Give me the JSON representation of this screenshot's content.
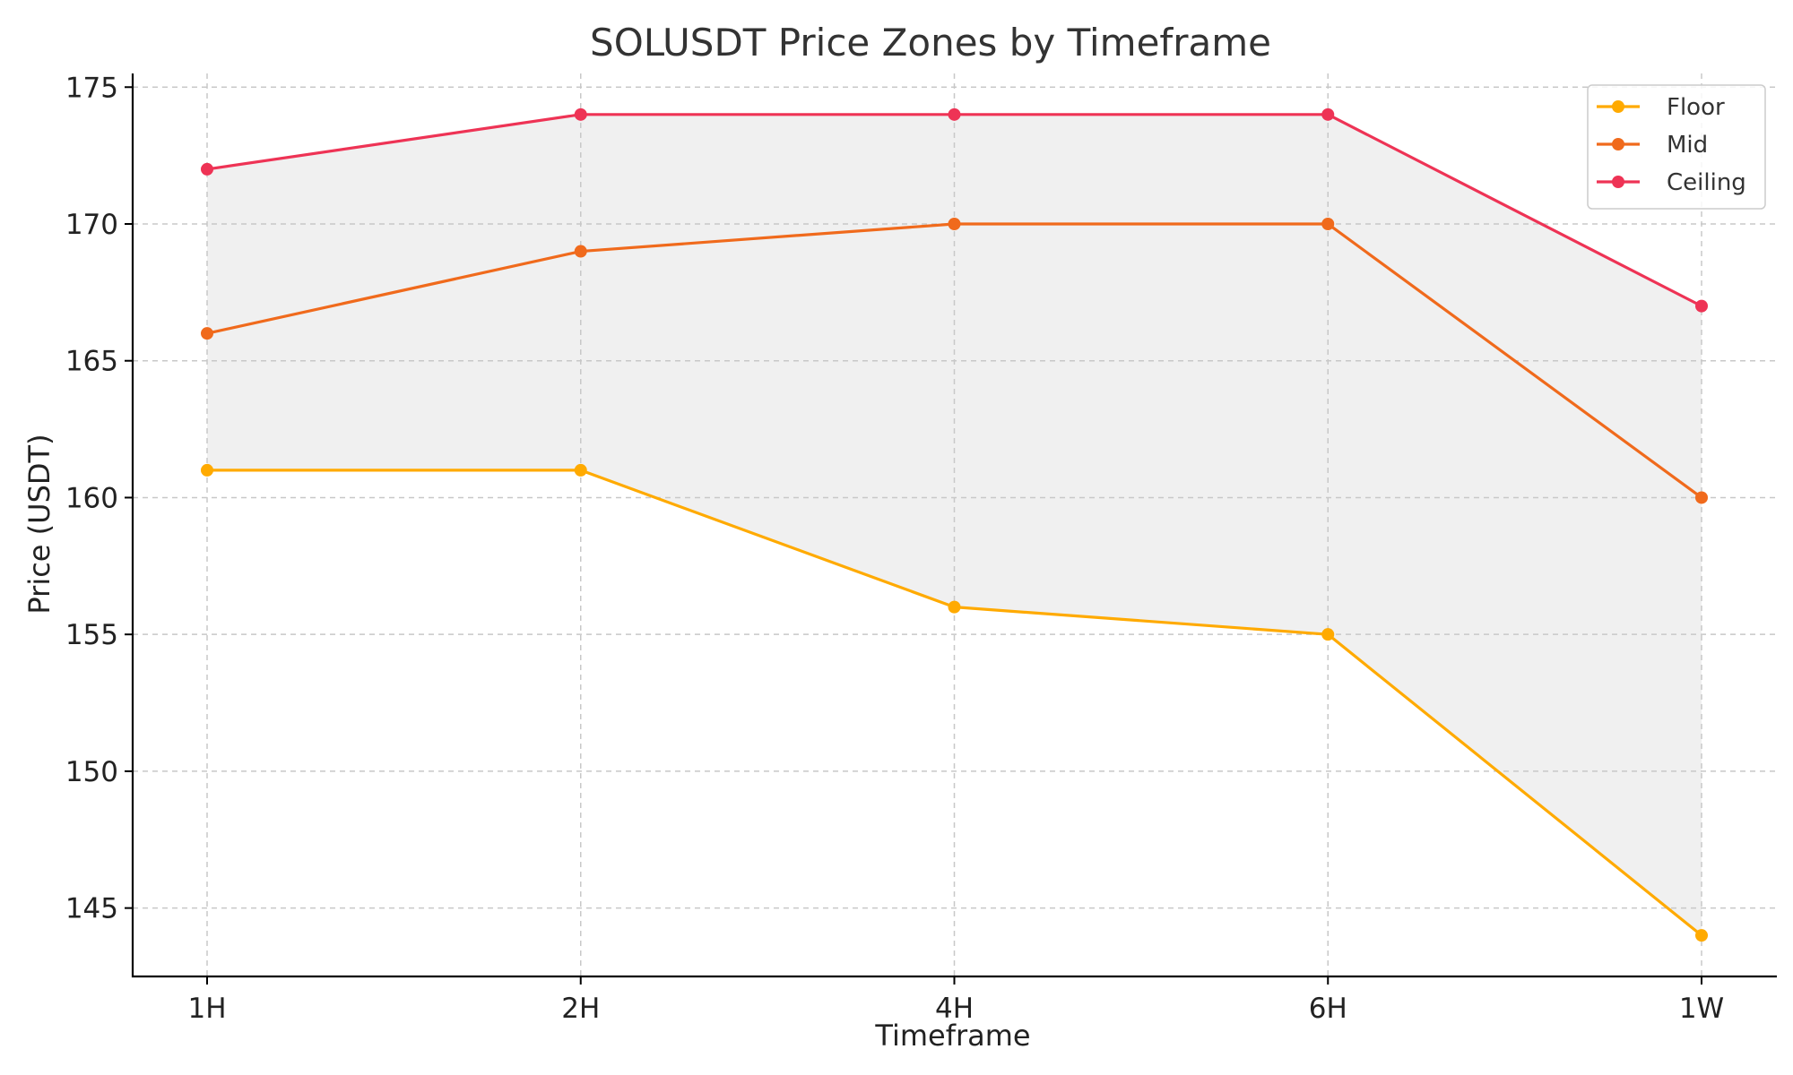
{
  "chart_data": {
    "type": "line",
    "title": "SOLUSDT Price Zones by Timeframe",
    "xlabel": "Timeframe",
    "ylabel": "Price (USDT)",
    "categories": [
      "1H",
      "2H",
      "4H",
      "6H",
      "1W"
    ],
    "ylim": [
      142.5,
      175.5
    ],
    "yticks": [
      145,
      150,
      155,
      160,
      165,
      170,
      175
    ],
    "grid": true,
    "legend_position": "top-right",
    "fill_between": {
      "lower": "Floor",
      "upper": "Ceiling",
      "color": "#f0f0f0"
    },
    "series": [
      {
        "name": "Floor",
        "color": "#ffaa00",
        "values": [
          161,
          161,
          156,
          155,
          144
        ]
      },
      {
        "name": "Mid",
        "color": "#f06a1c",
        "values": [
          166,
          169,
          170,
          170,
          160
        ]
      },
      {
        "name": "Ceiling",
        "color": "#ee3355",
        "values": [
          172,
          174,
          174,
          174,
          167
        ]
      }
    ]
  }
}
